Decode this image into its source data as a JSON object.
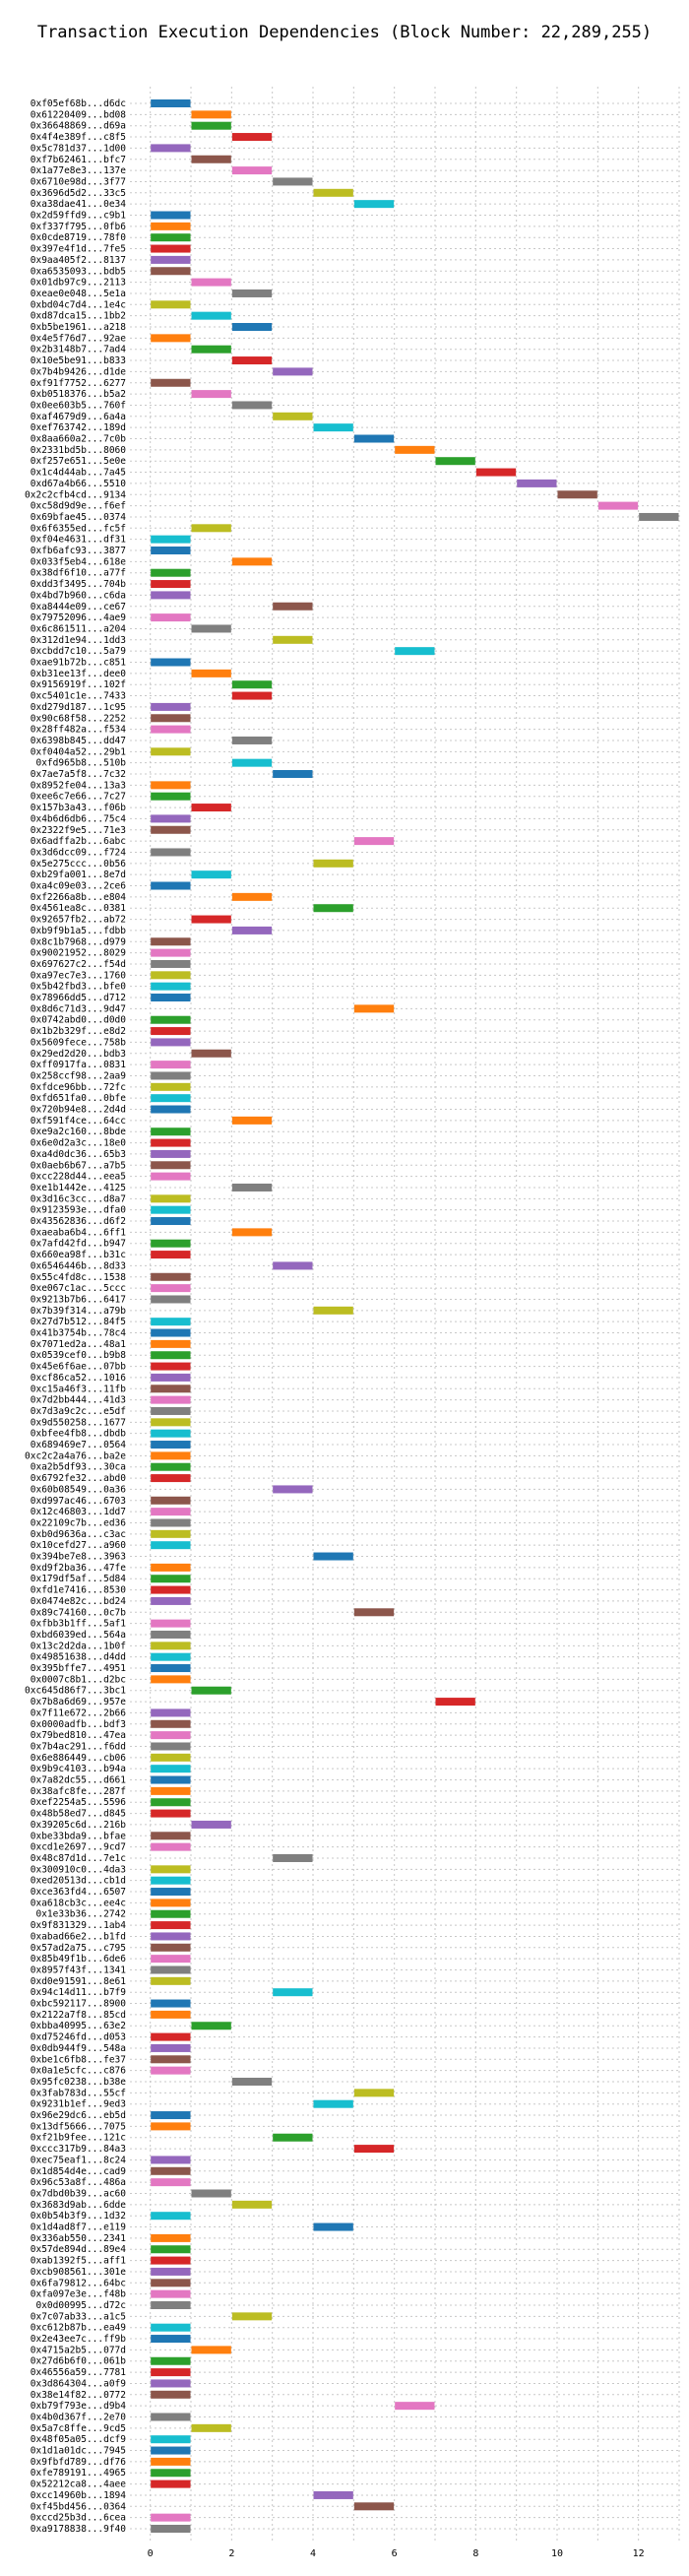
{
  "chart_data": {
    "type": "gantt",
    "title": "Transaction Execution Dependencies (Block Number: 22,289,255)",
    "xlabel": "",
    "ylabel": "",
    "xlim": [
      -0.5,
      13
    ],
    "x_ticks": [
      0,
      2,
      4,
      6,
      8,
      10,
      12
    ],
    "grid": true,
    "bar_duration": 1,
    "palette": [
      "#1f77b4",
      "#ff7f0e",
      "#2ca02c",
      "#d62728",
      "#9467bd",
      "#8c564b",
      "#e377c2",
      "#7f7f7f",
      "#bcbd22",
      "#17becf"
    ],
    "transactions": [
      {
        "label": "0xf05ef68b...d6dc",
        "start": 0
      },
      {
        "label": "0x61220409...bd08",
        "start": 1
      },
      {
        "label": "0x36648869...d69a",
        "start": 1
      },
      {
        "label": "0x4f4e389f...c8f5",
        "start": 2
      },
      {
        "label": "0x5c781d37...1d00",
        "start": 0
      },
      {
        "label": "0xf7b62461...bfc7",
        "start": 1
      },
      {
        "label": "0x1a77e8e3...137e",
        "start": 2
      },
      {
        "label": "0x6710e98d...3f77",
        "start": 3
      },
      {
        "label": "0x3696d5d2...33c5",
        "start": 4
      },
      {
        "label": "0xa38dae41...0e34",
        "start": 5
      },
      {
        "label": "0x2d59ffd9...c9b1",
        "start": 0
      },
      {
        "label": "0xf337f795...0fb6",
        "start": 0
      },
      {
        "label": "0x0cde8719...78f0",
        "start": 0
      },
      {
        "label": "0x397e4f1d...7fe5",
        "start": 0
      },
      {
        "label": "0x9aa405f2...8137",
        "start": 0
      },
      {
        "label": "0xa6535093...bdb5",
        "start": 0
      },
      {
        "label": "0x01db97c9...2113",
        "start": 1
      },
      {
        "label": "0xeae0e048...5e1a",
        "start": 2
      },
      {
        "label": "0xbd04c7d4...1e4c",
        "start": 0
      },
      {
        "label": "0xd87dca15...1bb2",
        "start": 1
      },
      {
        "label": "0xb5be1961...a218",
        "start": 2
      },
      {
        "label": "0x4e5f76d7...92ae",
        "start": 0
      },
      {
        "label": "0x2b3148b7...7ad4",
        "start": 1
      },
      {
        "label": "0x10e5be91...b833",
        "start": 2
      },
      {
        "label": "0x7b4b9426...d1de",
        "start": 3
      },
      {
        "label": "0xf91f7752...6277",
        "start": 0
      },
      {
        "label": "0xb0518376...b5a2",
        "start": 1
      },
      {
        "label": "0x0ee603b5...760f",
        "start": 2
      },
      {
        "label": "0xaf4679d9...6a4a",
        "start": 3
      },
      {
        "label": "0xef763742...189d",
        "start": 4
      },
      {
        "label": "0x8aa660a2...7c0b",
        "start": 5
      },
      {
        "label": "0x2331bd5b...8060",
        "start": 6
      },
      {
        "label": "0xf257e651...5e0e",
        "start": 7
      },
      {
        "label": "0x1c4d44ab...7a45",
        "start": 8
      },
      {
        "label": "0xd67a4b66...5510",
        "start": 9
      },
      {
        "label": "0x2c2cfb4cd...9134",
        "start": 10
      },
      {
        "label": "0xc58d9d9e...f6ef",
        "start": 11
      },
      {
        "label": "0x69bfae45...0374",
        "start": 12
      },
      {
        "label": "0x6f6355ed...fc5f",
        "start": 1
      },
      {
        "label": "0xf04e4631...df31",
        "start": 0
      },
      {
        "label": "0xfb6afc93...3877",
        "start": 0
      },
      {
        "label": "0x033f5eb4...618e",
        "start": 2
      },
      {
        "label": "0x38df6f10...a77f",
        "start": 0
      },
      {
        "label": "0xdd3f3495...704b",
        "start": 0
      },
      {
        "label": "0x4bd7b960...c6da",
        "start": 0
      },
      {
        "label": "0xa8444e09...ce67",
        "start": 3
      },
      {
        "label": "0x79752096...4ae9",
        "start": 0
      },
      {
        "label": "0x6c861511...a204",
        "start": 1
      },
      {
        "label": "0x312d1e94...1dd3",
        "start": 3
      },
      {
        "label": "0xcbdd7c10...5a79",
        "start": 6
      },
      {
        "label": "0xae91b72b...c851",
        "start": 0
      },
      {
        "label": "0xb31ee13f...dee0",
        "start": 1
      },
      {
        "label": "0x9156919f...102f",
        "start": 2
      },
      {
        "label": "0xc5401c1e...7433",
        "start": 2
      },
      {
        "label": "0xd279d187...1c95",
        "start": 0
      },
      {
        "label": "0x90c68f58...2252",
        "start": 0
      },
      {
        "label": "0x28ff482a...f534",
        "start": 0
      },
      {
        "label": "0x6398b845...dd47",
        "start": 2
      },
      {
        "label": "0xf0404a52...29b1",
        "start": 0
      },
      {
        "label": "0xfd965b8...510b",
        "start": 2
      },
      {
        "label": "0x7ae7a5f8...7c32",
        "start": 3
      },
      {
        "label": "0x8952fe04...13a3",
        "start": 0
      },
      {
        "label": "0xee6c7e66...7c27",
        "start": 0
      },
      {
        "label": "0x157b3a43...f06b",
        "start": 1
      },
      {
        "label": "0x4b6d6db6...75c4",
        "start": 0
      },
      {
        "label": "0x2322f9e5...71e3",
        "start": 0
      },
      {
        "label": "0x6adffa2b...6abc",
        "start": 5
      },
      {
        "label": "0x3d6dcc09...f724",
        "start": 0
      },
      {
        "label": "0x5e275ccc...0b56",
        "start": 4
      },
      {
        "label": "0xb29fa001...8e7d",
        "start": 1
      },
      {
        "label": "0xa4c09e03...2ce6",
        "start": 0
      },
      {
        "label": "0xf2266a8b...e804",
        "start": 2
      },
      {
        "label": "0x4561ea8c...0381",
        "start": 4
      },
      {
        "label": "0x92657fb2...ab72",
        "start": 1
      },
      {
        "label": "0xb9f9b1a5...fdbb",
        "start": 2
      },
      {
        "label": "0x8c1b7968...d979",
        "start": 0
      },
      {
        "label": "0x90021952...8029",
        "start": 0
      },
      {
        "label": "0x697627c2...f54d",
        "start": 0
      },
      {
        "label": "0xa97ec7e3...1760",
        "start": 0
      },
      {
        "label": "0x5b42fbd3...bfe0",
        "start": 0
      },
      {
        "label": "0x78966dd5...d712",
        "start": 0
      },
      {
        "label": "0x8d6c71d3...9d47",
        "start": 5
      },
      {
        "label": "0x0742abd0...d0d0",
        "start": 0
      },
      {
        "label": "0x1b2b329f...e8d2",
        "start": 0
      },
      {
        "label": "0x5609fece...758b",
        "start": 0
      },
      {
        "label": "0x29ed2d20...bdb3",
        "start": 1
      },
      {
        "label": "0xff0917fa...0831",
        "start": 0
      },
      {
        "label": "0x258ccf98...2aa9",
        "start": 0
      },
      {
        "label": "0xfdce96bb...72fc",
        "start": 0
      },
      {
        "label": "0xfd651fa0...0bfe",
        "start": 0
      },
      {
        "label": "0x720b94e8...2d4d",
        "start": 0
      },
      {
        "label": "0xf591f4ce...64cc",
        "start": 2
      },
      {
        "label": "0xe9a2c160...8bde",
        "start": 0
      },
      {
        "label": "0x6e0d2a3c...18e0",
        "start": 0
      },
      {
        "label": "0xa4d0dc36...65b3",
        "start": 0
      },
      {
        "label": "0x0aeb6b67...a7b5",
        "start": 0
      },
      {
        "label": "0xcc228d44...eea5",
        "start": 0
      },
      {
        "label": "0xe1b1442e...4125",
        "start": 2
      },
      {
        "label": "0x3d16c3cc...d8a7",
        "start": 0
      },
      {
        "label": "0x9123593e...dfa0",
        "start": 0
      },
      {
        "label": "0x43562836...d6f2",
        "start": 0
      },
      {
        "label": "0xaeaba6b4...6ff1",
        "start": 2
      },
      {
        "label": "0x7afd42fd...b947",
        "start": 0
      },
      {
        "label": "0x660ea98f...b31c",
        "start": 0
      },
      {
        "label": "0x6546446b...8d33",
        "start": 3
      },
      {
        "label": "0x55c4fd8c...1538",
        "start": 0
      },
      {
        "label": "0xe067c1ac...5ccc",
        "start": 0
      },
      {
        "label": "0x9213b7b6...6417",
        "start": 0
      },
      {
        "label": "0x7b39f314...a79b",
        "start": 4
      },
      {
        "label": "0x27d7b512...84f5",
        "start": 0
      },
      {
        "label": "0x41b3754b...78c4",
        "start": 0
      },
      {
        "label": "0x7071ed2a...48a1",
        "start": 0
      },
      {
        "label": "0x0539cef0...b9b8",
        "start": 0
      },
      {
        "label": "0x45e6f6ae...07bb",
        "start": 0
      },
      {
        "label": "0xcf86ca52...1016",
        "start": 0
      },
      {
        "label": "0xc15a46f3...11fb",
        "start": 0
      },
      {
        "label": "0x7d2bb444...41d3",
        "start": 0
      },
      {
        "label": "0x7d3a9c2c...e5df",
        "start": 0
      },
      {
        "label": "0x9d550258...1677",
        "start": 0
      },
      {
        "label": "0xbfee4fb8...dbdb",
        "start": 0
      },
      {
        "label": "0x689469e7...0564",
        "start": 0
      },
      {
        "label": "0xc2c2a4a76...ba2e",
        "start": 0
      },
      {
        "label": "0xa2b5df93...30ca",
        "start": 0
      },
      {
        "label": "0x6792fe32...abd0",
        "start": 0
      },
      {
        "label": "0x60b08549...0a36",
        "start": 3
      },
      {
        "label": "0xd997ac46...6703",
        "start": 0
      },
      {
        "label": "0x12c46803...1dd7",
        "start": 0
      },
      {
        "label": "0x22109c7b...ed36",
        "start": 0
      },
      {
        "label": "0xb0d9636a...c3ac",
        "start": 0
      },
      {
        "label": "0x10cefd27...a960",
        "start": 0
      },
      {
        "label": "0x394be7e8...3963",
        "start": 4
      },
      {
        "label": "0xd9f2ba36...47fe",
        "start": 0
      },
      {
        "label": "0x179df5af...5d84",
        "start": 0
      },
      {
        "label": "0xfd1e7416...8530",
        "start": 0
      },
      {
        "label": "0x0474e82c...bd24",
        "start": 0
      },
      {
        "label": "0x89c74160...0c7b",
        "start": 5
      },
      {
        "label": "0xfbb3b1ff...5af1",
        "start": 0
      },
      {
        "label": "0xbd6039ed...564a",
        "start": 0
      },
      {
        "label": "0x13c2d2da...1b0f",
        "start": 0
      },
      {
        "label": "0x49851638...d4dd",
        "start": 0
      },
      {
        "label": "0x395bffe7...4951",
        "start": 0
      },
      {
        "label": "0x0007c8b1...d2bc",
        "start": 0
      },
      {
        "label": "0xc645d86f7...3bc1",
        "start": 1
      },
      {
        "label": "0x7b8a6d69...957e",
        "start": 7
      },
      {
        "label": "0x7f11e672...2b66",
        "start": 0
      },
      {
        "label": "0x0000adfb...bdf3",
        "start": 0
      },
      {
        "label": "0x79bed810...47ea",
        "start": 0
      },
      {
        "label": "0x7b4ac291...f6dd",
        "start": 0
      },
      {
        "label": "0x6e886449...cb06",
        "start": 0
      },
      {
        "label": "0x9b9c4103...b94a",
        "start": 0
      },
      {
        "label": "0x7a82dc55...d661",
        "start": 0
      },
      {
        "label": "0x38afc8fe...287f",
        "start": 0
      },
      {
        "label": "0xef2254a5...5596",
        "start": 0
      },
      {
        "label": "0x48b58ed7...d845",
        "start": 0
      },
      {
        "label": "0x39205c6d...216b",
        "start": 1
      },
      {
        "label": "0xbe33bda9...bfae",
        "start": 0
      },
      {
        "label": "0xcd1e2697...9cd7",
        "start": 0
      },
      {
        "label": "0x48c87d1d...7e1c",
        "start": 3
      },
      {
        "label": "0x300910c0...4da3",
        "start": 0
      },
      {
        "label": "0xed20513d...cb1d",
        "start": 0
      },
      {
        "label": "0xce363fd4...6507",
        "start": 0
      },
      {
        "label": "0xa618cb3c...ee4c",
        "start": 0
      },
      {
        "label": "0x1e33b36...2742",
        "start": 0
      },
      {
        "label": "0x9f831329...1ab4",
        "start": 0
      },
      {
        "label": "0xabad66e2...b1fd",
        "start": 0
      },
      {
        "label": "0x57ad2a75...c795",
        "start": 0
      },
      {
        "label": "0x85b49f1b...6de6",
        "start": 0
      },
      {
        "label": "0x8957f43f...1341",
        "start": 0
      },
      {
        "label": "0xd0e91591...8e61",
        "start": 0
      },
      {
        "label": "0x94c14d11...b7f9",
        "start": 3
      },
      {
        "label": "0xbc592117...8900",
        "start": 0
      },
      {
        "label": "0x2122a7f8...85cd",
        "start": 0
      },
      {
        "label": "0xbba40995...63e2",
        "start": 1
      },
      {
        "label": "0xd75246fd...d053",
        "start": 0
      },
      {
        "label": "0x0db944f9...548a",
        "start": 0
      },
      {
        "label": "0xbe1c6fb8...fe37",
        "start": 0
      },
      {
        "label": "0x0a1e5cfc...c876",
        "start": 0
      },
      {
        "label": "0x95fc0238...b38e",
        "start": 2
      },
      {
        "label": "0x3fab783d...55cf",
        "start": 5
      },
      {
        "label": "0x9231b1ef...9ed3",
        "start": 4
      },
      {
        "label": "0x96e29dc6...eb5d",
        "start": 0
      },
      {
        "label": "0x13df5666...7075",
        "start": 0
      },
      {
        "label": "0xf21b9fee...121c",
        "start": 3
      },
      {
        "label": "0xccc317b9...84a3",
        "start": 5
      },
      {
        "label": "0xec75eaf1...8c24",
        "start": 0
      },
      {
        "label": "0x1d854d4e...cad9",
        "start": 0
      },
      {
        "label": "0x96c53a8f...486a",
        "start": 0
      },
      {
        "label": "0x7dbd0b39...ac60",
        "start": 1
      },
      {
        "label": "0x3683d9ab...6dde",
        "start": 2
      },
      {
        "label": "0x0b54b3f9...1d32",
        "start": 0
      },
      {
        "label": "0x1d4ad8f7...e119",
        "start": 4
      },
      {
        "label": "0x336ab550...2341",
        "start": 0
      },
      {
        "label": "0x57de894d...89e4",
        "start": 0
      },
      {
        "label": "0xab1392f5...aff1",
        "start": 0
      },
      {
        "label": "0xcb908561...301e",
        "start": 0
      },
      {
        "label": "0x6fa79812...64bc",
        "start": 0
      },
      {
        "label": "0xfa097e3e...f48b",
        "start": 0
      },
      {
        "label": "0x0d00995...d72c",
        "start": 0
      },
      {
        "label": "0x7c07ab33...a1c5",
        "start": 2
      },
      {
        "label": "0xc612b87b...ea49",
        "start": 0
      },
      {
        "label": "0x2e43ee7c...ff9b",
        "start": 0
      },
      {
        "label": "0x4715a2b5...077d",
        "start": 1
      },
      {
        "label": "0x27d6b6f0...061b",
        "start": 0
      },
      {
        "label": "0x46556a59...7781",
        "start": 0
      },
      {
        "label": "0x3d864304...a0f9",
        "start": 0
      },
      {
        "label": "0x38e14f82...0772",
        "start": 0
      },
      {
        "label": "0xb79f793e...d9b4",
        "start": 6
      },
      {
        "label": "0x4b0d367f...2e70",
        "start": 0
      },
      {
        "label": "0x5a7c8ffe...9cd5",
        "start": 1
      },
      {
        "label": "0x48f05a05...dcf9",
        "start": 0
      },
      {
        "label": "0x1d1a01dc...7945",
        "start": 0
      },
      {
        "label": "0x9fbfd789...df76",
        "start": 0
      },
      {
        "label": "0xfe789191...4965",
        "start": 0
      },
      {
        "label": "0x52212ca8...4aee",
        "start": 0
      },
      {
        "label": "0xcc14960b...1894",
        "start": 4
      },
      {
        "label": "0xf45bd456...0364",
        "start": 5
      },
      {
        "label": "0xccd25b3d...6cea",
        "start": 0
      },
      {
        "label": "0xa9178838...9f40",
        "start": 0
      }
    ]
  }
}
